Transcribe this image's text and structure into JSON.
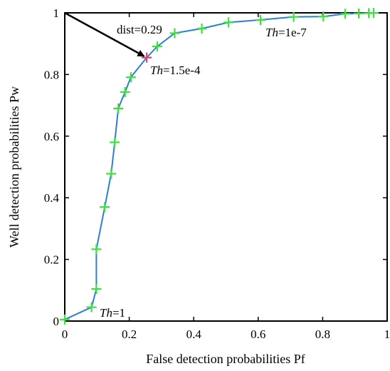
{
  "chart_data": {
    "type": "line",
    "xlabel": "False detection probabilities Pf",
    "ylabel": "Well detection probabilities Pw",
    "xlim": [
      0,
      1
    ],
    "ylim": [
      0,
      1
    ],
    "xticks": [
      "0",
      "0.2",
      "0.4",
      "0.6",
      "0.8",
      "1"
    ],
    "yticks": [
      "0",
      "0.2",
      "0.4",
      "0.6",
      "0.8",
      "1"
    ],
    "grid": false,
    "series": [
      {
        "color": "#2a7fd4",
        "marker_color": "#3ee03e",
        "marker": "plus",
        "x": [
          0.0,
          0.083,
          0.098,
          0.098,
          0.124,
          0.144,
          0.155,
          0.166,
          0.187,
          0.205,
          0.254,
          0.287,
          0.341,
          0.425,
          0.508,
          0.607,
          0.71,
          0.802,
          0.87,
          0.912,
          0.943,
          0.958
        ],
        "y": [
          0.005,
          0.045,
          0.104,
          0.233,
          0.37,
          0.478,
          0.58,
          0.69,
          0.743,
          0.791,
          0.855,
          0.891,
          0.934,
          0.949,
          0.969,
          0.977,
          0.987,
          0.988,
          0.997,
          0.998,
          0.999,
          1.0
        ]
      }
    ],
    "highlight_point": {
      "x": 0.254,
      "y": 0.855,
      "color": "#e8456a"
    },
    "arrow": {
      "from": [
        0,
        1
      ],
      "to": [
        0.254,
        0.855
      ]
    },
    "annotations": [
      {
        "prefix": "dist=0.29",
        "italic": "",
        "suffix": ""
      },
      {
        "prefix": "",
        "italic": "Th",
        "suffix": "=1.5e-4"
      },
      {
        "prefix": "",
        "italic": "Th",
        "suffix": "=1e-7"
      },
      {
        "prefix": "",
        "italic": "Th",
        "suffix": "=1"
      }
    ]
  }
}
